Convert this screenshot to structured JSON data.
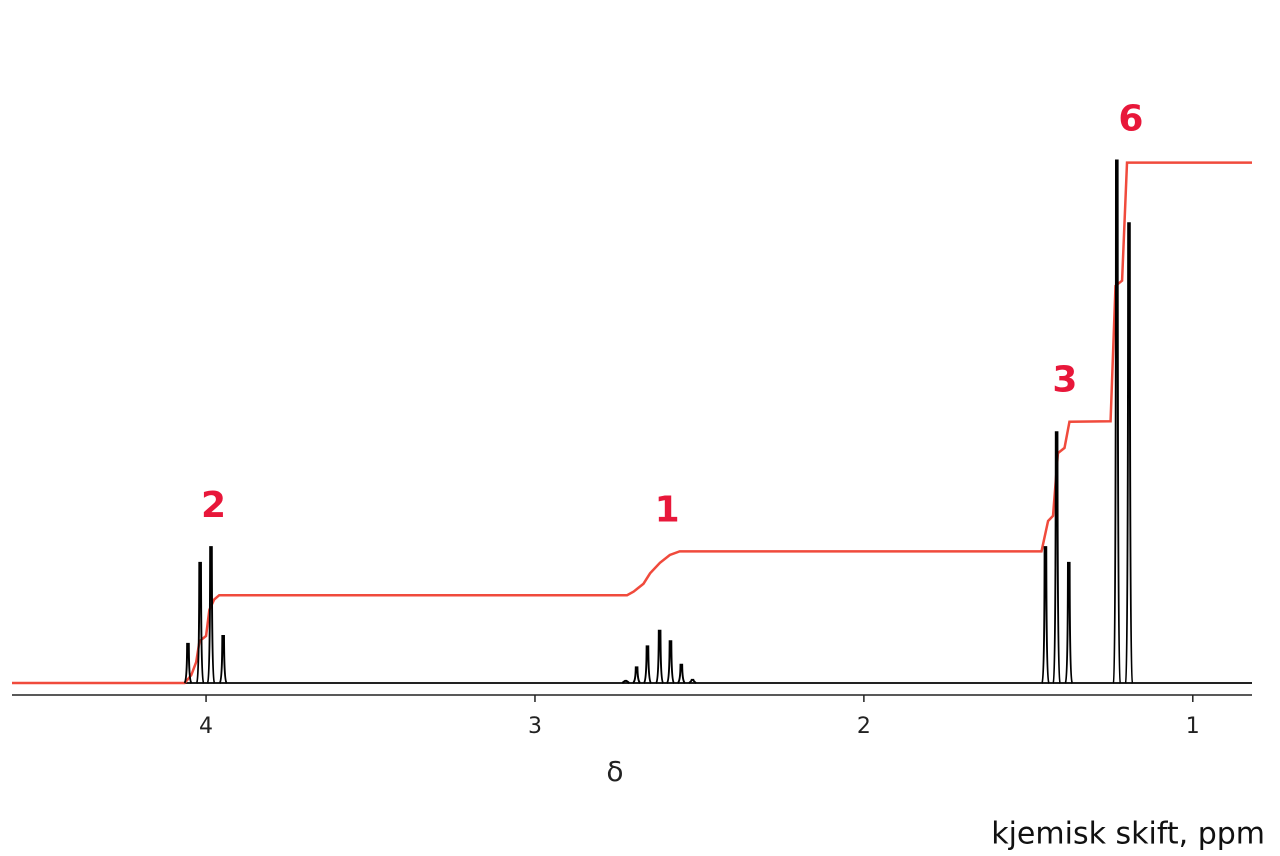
{
  "chart_data": {
    "type": "spectrum",
    "xlabel": "δ",
    "annotation": "kjemisk skift, ppm",
    "xlim": [
      4.59,
      0.82
    ],
    "xticks": [
      4,
      3,
      2,
      1
    ],
    "ylim": [
      0,
      120
    ],
    "spectrum_color": "#000000",
    "groups": [
      {
        "label": "2",
        "x": [
          4.055,
          4.018,
          3.985,
          3.948
        ],
        "values": [
          7.5,
          23,
          26,
          9
        ]
      },
      {
        "label": "1",
        "x": [
          2.724,
          2.691,
          2.658,
          2.621,
          2.588,
          2.555,
          2.521
        ],
        "values": [
          0.4,
          3,
          7,
          10,
          8,
          3.5,
          0.6
        ]
      },
      {
        "label": "3",
        "x": [
          1.448,
          1.414,
          1.377
        ],
        "values": [
          26,
          48,
          23
        ]
      },
      {
        "label": "6",
        "x": [
          1.231,
          1.194
        ],
        "values": [
          100,
          88
        ]
      }
    ],
    "integral": {
      "color": "#f04a3c",
      "x": [
        4.59,
        4.065,
        4.045,
        4.03,
        4.02,
        4.0,
        3.99,
        3.975,
        3.96,
        2.72,
        2.7,
        2.67,
        2.65,
        2.62,
        2.59,
        2.56,
        1.46,
        1.44,
        1.425,
        1.41,
        1.39,
        1.375,
        1.25,
        1.235,
        1.215,
        1.2,
        0.82
      ],
      "values": [
        0,
        0,
        1.5,
        4,
        8,
        9,
        14,
        16,
        16.8,
        16.8,
        17.5,
        19,
        21,
        23,
        24.5,
        25.2,
        25.2,
        31,
        32,
        44,
        45,
        50,
        50.1,
        76,
        77,
        99.6,
        99.6
      ]
    }
  }
}
